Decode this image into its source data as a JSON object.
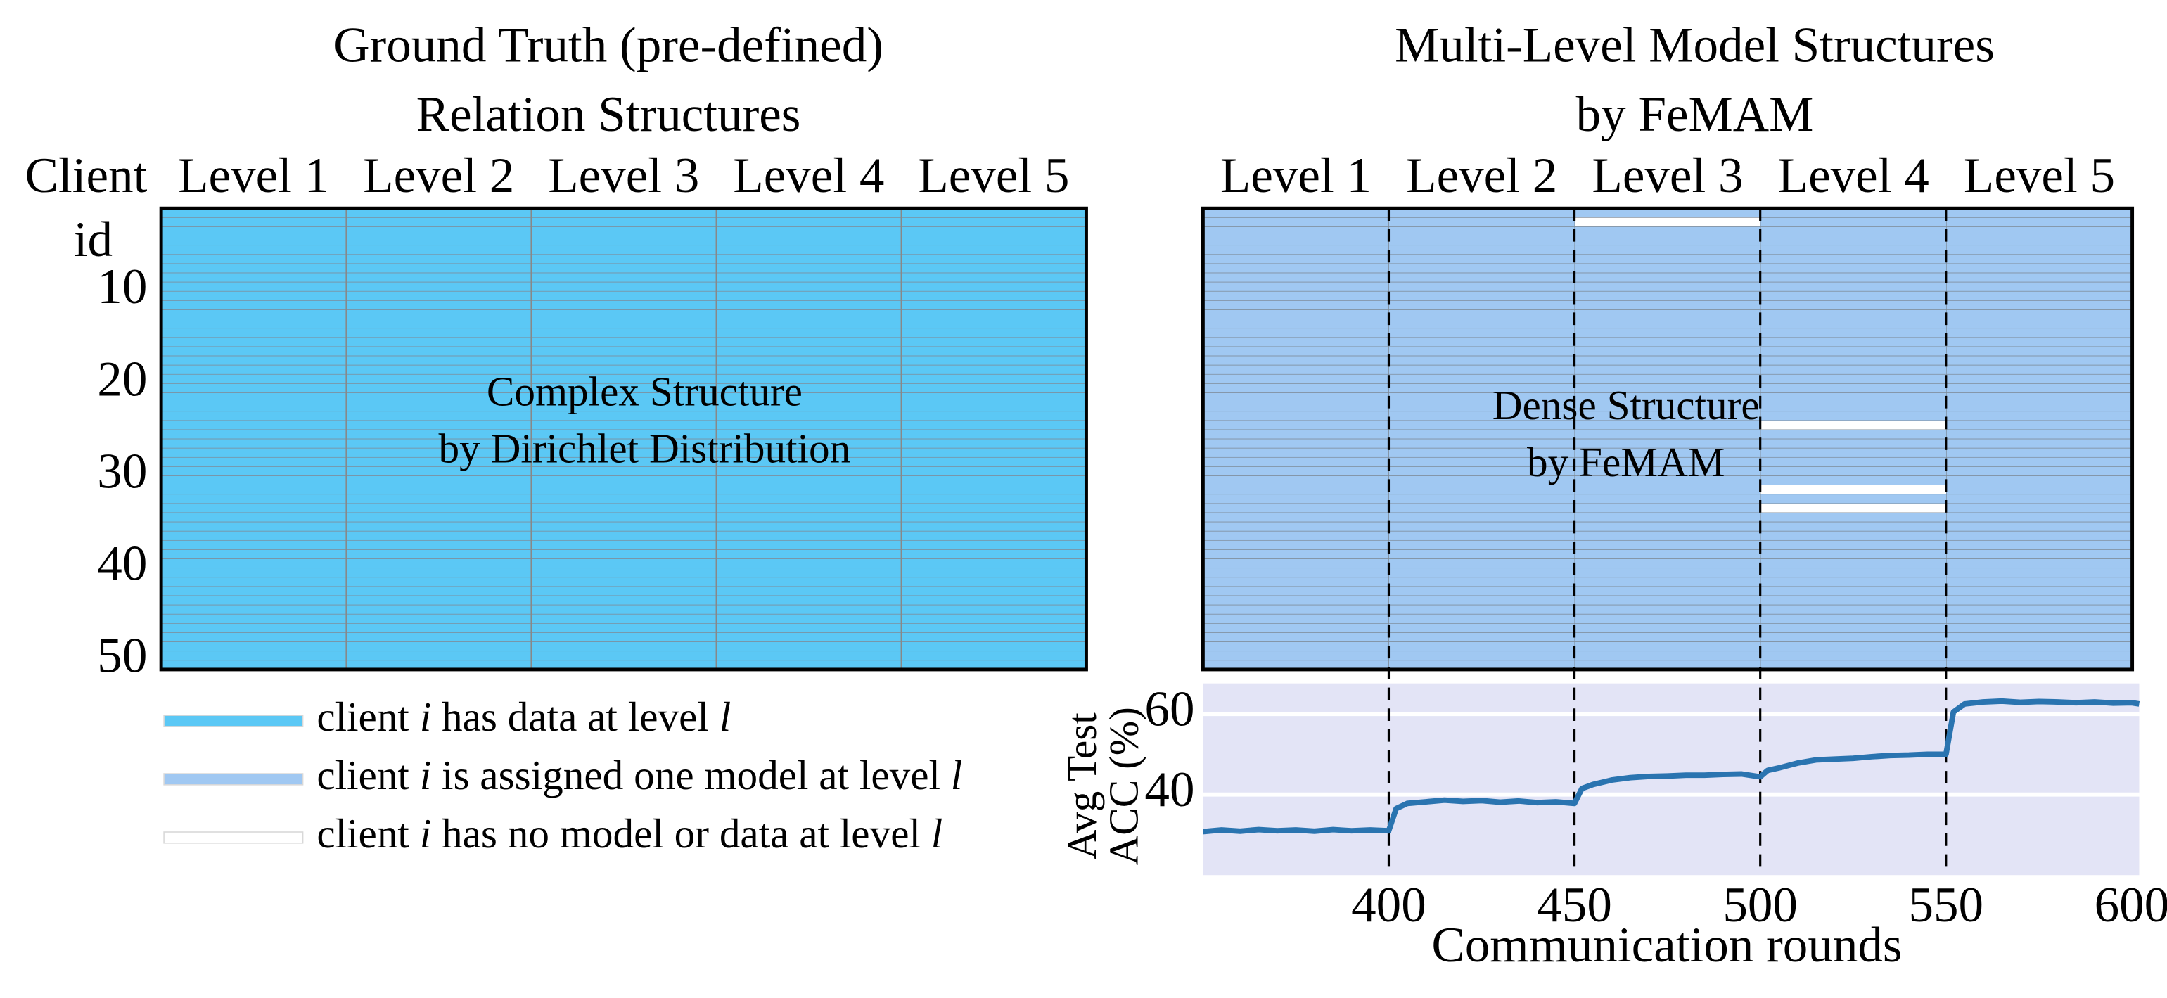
{
  "chart_data": [
    {
      "type": "matrix",
      "title": [
        "Ground Truth (pre-defined)",
        "Relation Structures"
      ],
      "ylabel": [
        "Client",
        "id"
      ],
      "annotation": [
        "Complex Structure",
        "by Dirichlet Distribution"
      ],
      "color": "#5bc8f5",
      "ylim": [
        0.5,
        50.5
      ],
      "yticks": [
        10,
        20,
        30,
        40,
        50
      ],
      "series": [
        {
          "name": "Level 1",
          "values": [
            1,
            1,
            1,
            1,
            1,
            1,
            1,
            1,
            1,
            1,
            1,
            1,
            1,
            1,
            1,
            1,
            1,
            1,
            1,
            1,
            1,
            1,
            1,
            1,
            1,
            1,
            1,
            1,
            1,
            1,
            1,
            1,
            1,
            1,
            1,
            1,
            1,
            1,
            1,
            1,
            1,
            1,
            1,
            1,
            1,
            1,
            1,
            1,
            1,
            1
          ]
        },
        {
          "name": "Level 2",
          "values": [
            1,
            1,
            1,
            1,
            1,
            1,
            1,
            1,
            1,
            1,
            1,
            1,
            1,
            1,
            1,
            1,
            1,
            1,
            1,
            1,
            1,
            1,
            1,
            1,
            1,
            1,
            1,
            1,
            1,
            1,
            1,
            1,
            1,
            1,
            1,
            1,
            1,
            1,
            1,
            1,
            1,
            1,
            1,
            1,
            1,
            1,
            1,
            1,
            1,
            1
          ]
        },
        {
          "name": "Level 3",
          "values": [
            1,
            1,
            1,
            1,
            1,
            1,
            1,
            1,
            1,
            1,
            1,
            1,
            1,
            1,
            1,
            1,
            1,
            1,
            1,
            1,
            1,
            1,
            1,
            1,
            1,
            1,
            1,
            1,
            1,
            1,
            1,
            1,
            1,
            1,
            1,
            1,
            1,
            1,
            1,
            1,
            1,
            1,
            1,
            1,
            1,
            1,
            1,
            1,
            1,
            1
          ]
        },
        {
          "name": "Level 4",
          "values": [
            1,
            1,
            1,
            1,
            1,
            1,
            1,
            1,
            1,
            1,
            1,
            1,
            1,
            1,
            1,
            1,
            1,
            1,
            1,
            1,
            1,
            1,
            1,
            1,
            1,
            1,
            1,
            1,
            1,
            1,
            1,
            1,
            1,
            1,
            1,
            1,
            1,
            1,
            1,
            1,
            1,
            1,
            1,
            1,
            1,
            1,
            1,
            1,
            1,
            1
          ]
        },
        {
          "name": "Level 5",
          "values": [
            1,
            1,
            1,
            1,
            1,
            1,
            1,
            1,
            1,
            1,
            1,
            1,
            1,
            1,
            1,
            1,
            1,
            1,
            1,
            1,
            1,
            1,
            1,
            1,
            1,
            1,
            1,
            1,
            1,
            1,
            1,
            1,
            1,
            1,
            1,
            1,
            1,
            1,
            1,
            1,
            1,
            1,
            1,
            1,
            1,
            1,
            1,
            1,
            1,
            1
          ]
        }
      ]
    },
    {
      "type": "matrix",
      "title": [
        "Multi-Level Model Structures",
        "by FeMAM"
      ],
      "annotation": [
        "Dense Structure",
        "by FeMAM"
      ],
      "color": "#a0c8f2",
      "ylim": [
        0.5,
        50.5
      ],
      "series": [
        {
          "name": "Level 1",
          "values": [
            1,
            1,
            1,
            1,
            1,
            1,
            1,
            1,
            1,
            1,
            1,
            1,
            1,
            1,
            1,
            1,
            1,
            1,
            1,
            1,
            1,
            1,
            1,
            1,
            1,
            1,
            1,
            1,
            1,
            1,
            1,
            1,
            1,
            1,
            1,
            1,
            1,
            1,
            1,
            1,
            1,
            1,
            1,
            1,
            1,
            1,
            1,
            1,
            1,
            1
          ]
        },
        {
          "name": "Level 2",
          "values": [
            1,
            1,
            1,
            1,
            1,
            1,
            1,
            1,
            1,
            1,
            1,
            1,
            1,
            1,
            1,
            1,
            1,
            1,
            1,
            1,
            1,
            1,
            1,
            1,
            1,
            1,
            1,
            1,
            1,
            1,
            1,
            1,
            1,
            1,
            1,
            1,
            1,
            1,
            1,
            1,
            1,
            1,
            1,
            1,
            1,
            1,
            1,
            1,
            1,
            1
          ]
        },
        {
          "name": "Level 3",
          "values": [
            1,
            0,
            1,
            1,
            1,
            1,
            1,
            1,
            1,
            1,
            1,
            1,
            1,
            1,
            1,
            1,
            1,
            1,
            1,
            1,
            1,
            1,
            1,
            1,
            1,
            1,
            1,
            1,
            1,
            1,
            1,
            1,
            1,
            1,
            1,
            1,
            1,
            1,
            1,
            1,
            1,
            1,
            1,
            1,
            1,
            1,
            1,
            1,
            1,
            1
          ]
        },
        {
          "name": "Level 4",
          "values": [
            1,
            1,
            1,
            1,
            1,
            1,
            1,
            1,
            1,
            1,
            1,
            1,
            1,
            1,
            1,
            1,
            1,
            1,
            1,
            1,
            1,
            1,
            1,
            0,
            1,
            1,
            1,
            1,
            1,
            1,
            0,
            1,
            0,
            1,
            1,
            1,
            1,
            1,
            1,
            1,
            1,
            1,
            1,
            1,
            1,
            1,
            1,
            1,
            1,
            1
          ]
        },
        {
          "name": "Level 5",
          "values": [
            1,
            1,
            1,
            1,
            1,
            1,
            1,
            1,
            1,
            1,
            1,
            1,
            1,
            1,
            1,
            1,
            1,
            1,
            1,
            1,
            1,
            1,
            1,
            1,
            1,
            1,
            1,
            1,
            1,
            1,
            1,
            1,
            1,
            1,
            1,
            1,
            1,
            1,
            1,
            1,
            1,
            1,
            1,
            1,
            1,
            1,
            1,
            1,
            1,
            1
          ]
        }
      ]
    },
    {
      "type": "line",
      "xlabel": "Communication rounds",
      "ylabel": [
        "Avg Test",
        "ACC (%)"
      ],
      "color": "#2a74b0",
      "grid": true,
      "xlim": [
        350,
        602
      ],
      "ylim": [
        20,
        67.6
      ],
      "xticks": [
        400,
        450,
        500,
        550,
        600
      ],
      "yticks": [
        40,
        60
      ],
      "markers": [
        400,
        450,
        500,
        550
      ],
      "x": [
        350,
        355,
        360,
        365,
        370,
        375,
        380,
        385,
        390,
        395,
        400,
        402,
        405,
        410,
        415,
        420,
        425,
        430,
        435,
        440,
        445,
        450,
        452,
        455,
        460,
        465,
        470,
        475,
        480,
        485,
        490,
        495,
        500,
        502,
        505,
        510,
        515,
        520,
        525,
        530,
        535,
        540,
        545,
        550,
        552,
        555,
        560,
        565,
        570,
        575,
        580,
        585,
        590,
        595,
        600,
        602
      ],
      "values": [
        30.8,
        31.2,
        30.9,
        31.3,
        31.0,
        31.2,
        30.9,
        31.3,
        31.0,
        31.2,
        31.0,
        36.5,
        37.8,
        38.2,
        38.6,
        38.3,
        38.5,
        38.1,
        38.4,
        38.0,
        38.2,
        37.8,
        41.5,
        42.5,
        43.6,
        44.2,
        44.5,
        44.6,
        44.8,
        44.8,
        45.0,
        45.1,
        44.4,
        46.0,
        46.6,
        47.8,
        48.6,
        48.8,
        49.0,
        49.4,
        49.7,
        49.8,
        50.0,
        50.0,
        60.5,
        62.5,
        63.0,
        63.2,
        62.9,
        63.1,
        63.0,
        62.8,
        63.0,
        62.7,
        62.8,
        62.5
      ]
    }
  ],
  "legend": [
    {
      "parts": [
        "client ",
        "i",
        " has data at level ",
        "l"
      ],
      "color": "#5bc8f5"
    },
    {
      "parts": [
        "client ",
        "i",
        " is assigned one model at level ",
        "l"
      ],
      "color": "#a0c8f2"
    },
    {
      "parts": [
        "client ",
        "i",
        " has no model or data at level ",
        "l"
      ],
      "color": "#ffffff"
    }
  ]
}
